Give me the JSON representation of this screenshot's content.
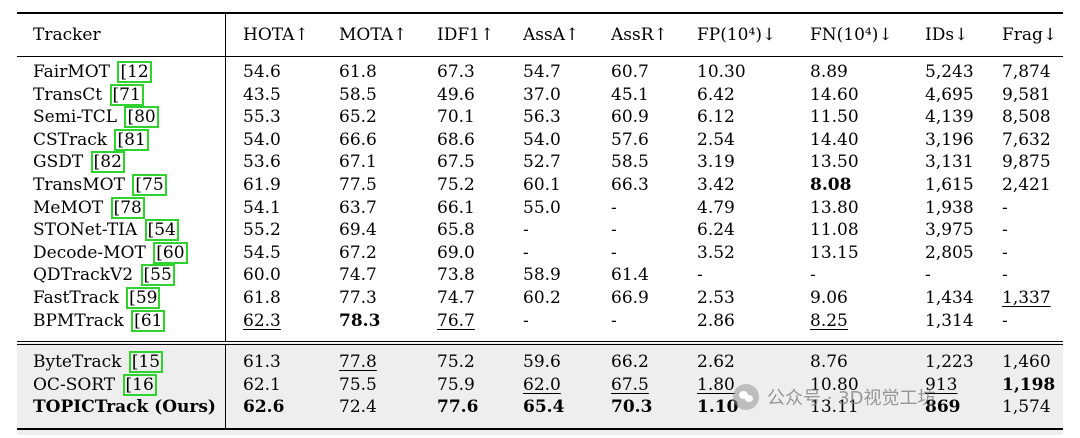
{
  "columns": [
    "Tracker",
    "HOTA↑",
    "MOTA↑",
    "IDF1↑",
    "AssA↑",
    "AssR↑",
    "FP(10⁴)↓",
    "FN(10⁴)↓",
    "IDs↓",
    "Frag↓"
  ],
  "groups": [
    {
      "shaded": false,
      "rows": [
        {
          "name": "FairMOT",
          "ref": "12",
          "cells": [
            "54.6",
            "61.8",
            "67.3",
            "54.7",
            "60.7",
            "10.30",
            "8.89",
            "5,243",
            "7,874"
          ],
          "bold": [],
          "underline": []
        },
        {
          "name": "TransCt",
          "ref": "71",
          "cells": [
            "43.5",
            "58.5",
            "49.6",
            "37.0",
            "45.1",
            "6.42",
            "14.60",
            "4,695",
            "9,581"
          ],
          "bold": [],
          "underline": []
        },
        {
          "name": "Semi-TCL",
          "ref": "80",
          "cells": [
            "55.3",
            "65.2",
            "70.1",
            "56.3",
            "60.9",
            "6.12",
            "11.50",
            "4,139",
            "8,508"
          ],
          "bold": [],
          "underline": []
        },
        {
          "name": "CSTrack",
          "ref": "81",
          "cells": [
            "54.0",
            "66.6",
            "68.6",
            "54.0",
            "57.6",
            "2.54",
            "14.40",
            "3,196",
            "7,632"
          ],
          "bold": [],
          "underline": []
        },
        {
          "name": "GSDT",
          "ref": "82",
          "cells": [
            "53.6",
            "67.1",
            "67.5",
            "52.7",
            "58.5",
            "3.19",
            "13.50",
            "3,131",
            "9,875"
          ],
          "bold": [],
          "underline": []
        },
        {
          "name": "TransMOT",
          "ref": "75",
          "cells": [
            "61.9",
            "77.5",
            "75.2",
            "60.1",
            "66.3",
            "3.42",
            "8.08",
            "1,615",
            "2,421"
          ],
          "bold": [
            6
          ],
          "underline": []
        },
        {
          "name": "MeMOT",
          "ref": "78",
          "cells": [
            "54.1",
            "63.7",
            "66.1",
            "55.0",
            "-",
            "4.79",
            "13.80",
            "1,938",
            "-"
          ],
          "bold": [],
          "underline": []
        },
        {
          "name": "STONet-TIA",
          "ref": "54",
          "cells": [
            "55.2",
            "69.4",
            "65.8",
            "-",
            "-",
            "6.24",
            "11.08",
            "3,975",
            "-"
          ],
          "bold": [],
          "underline": []
        },
        {
          "name": "Decode-MOT",
          "ref": "60",
          "cells": [
            "54.5",
            "67.2",
            "69.0",
            "-",
            "-",
            "3.52",
            "13.15",
            "2,805",
            "-"
          ],
          "bold": [],
          "underline": []
        },
        {
          "name": "QDTrackV2",
          "ref": "55",
          "cells": [
            "60.0",
            "74.7",
            "73.8",
            "58.9",
            "61.4",
            "-",
            "-",
            "-",
            "-"
          ],
          "bold": [],
          "underline": []
        },
        {
          "name": "FastTrack",
          "ref": "59",
          "cells": [
            "61.8",
            "77.3",
            "74.7",
            "60.2",
            "66.9",
            "2.53",
            "9.06",
            "1,434",
            "1,337"
          ],
          "bold": [],
          "underline": [
            8
          ]
        },
        {
          "name": "BPMTrack",
          "ref": "61",
          "cells": [
            "62.3",
            "78.3",
            "76.7",
            "-",
            "-",
            "2.86",
            "8.25",
            "1,314",
            "-"
          ],
          "bold": [
            1
          ],
          "underline": [
            0,
            2,
            6
          ]
        }
      ]
    },
    {
      "shaded": true,
      "rows": [
        {
          "name": "ByteTrack",
          "ref": "15",
          "cells": [
            "61.3",
            "77.8",
            "75.2",
            "59.6",
            "66.2",
            "2.62",
            "8.76",
            "1,223",
            "1,460"
          ],
          "bold": [],
          "underline": [
            1
          ]
        },
        {
          "name": "OC-SORT",
          "ref": "16",
          "cells": [
            "62.1",
            "75.5",
            "75.9",
            "62.0",
            "67.5",
            "1.80",
            "10.80",
            "913",
            "1,198"
          ],
          "bold": [
            8
          ],
          "underline": [
            3,
            4,
            5,
            7
          ]
        },
        {
          "name": "TOPICTrack (Ours)",
          "ref": "",
          "cells": [
            "62.6",
            "72.4",
            "77.6",
            "65.4",
            "70.3",
            "1.10",
            "13.11",
            "869",
            "1,574"
          ],
          "bold": [
            0,
            2,
            3,
            4,
            5,
            7
          ],
          "underline": [],
          "name_bold": true
        }
      ]
    }
  ],
  "watermark": "公众号 · 3D视觉工坊"
}
